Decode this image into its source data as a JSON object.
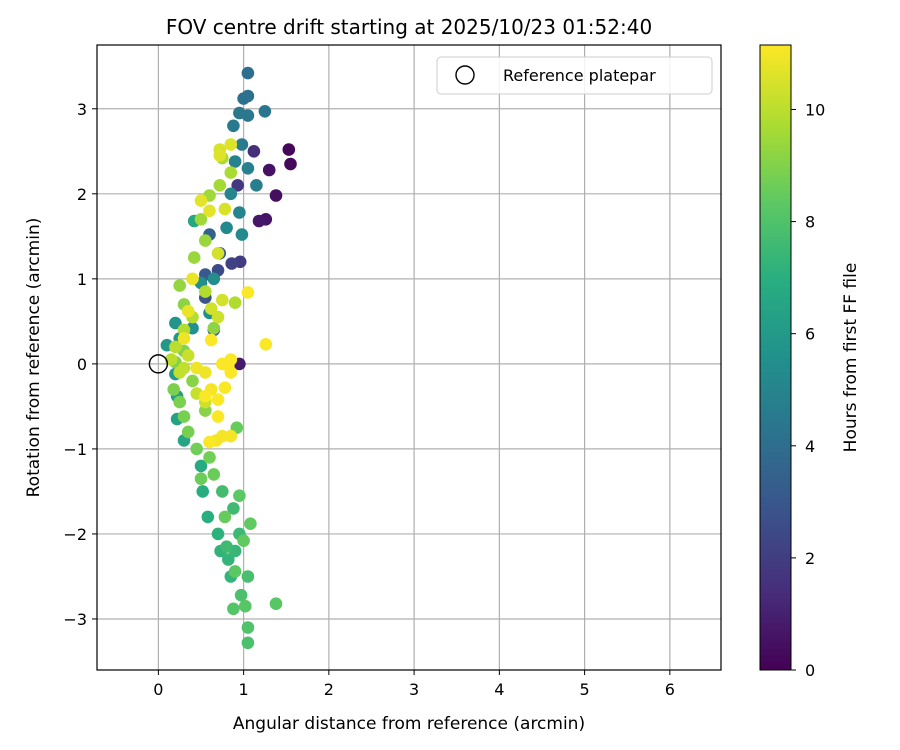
{
  "chart_data": {
    "type": "scatter",
    "title": "FOV centre drift starting at 2025/10/23 01:52:40",
    "xlabel": "Angular distance from reference (arcmin)",
    "ylabel": "Rotation from reference (arcmin)",
    "xlim": [
      -0.72,
      6.6
    ],
    "ylim": [
      -3.6,
      3.75
    ],
    "xticks": [
      0,
      1,
      2,
      3,
      4,
      5,
      6
    ],
    "yticks": [
      -3,
      -2,
      -1,
      0,
      1,
      2,
      3
    ],
    "grid": true,
    "colormap": "viridis",
    "colorbar": {
      "label": "Hours from first FF file",
      "min": 0,
      "max": 11.15,
      "ticks": [
        0,
        2,
        4,
        6,
        8,
        10
      ]
    },
    "legend": {
      "position": "top-right",
      "entries": [
        {
          "label": "Reference platepar",
          "marker": "open-circle",
          "point": [
            0,
            0
          ]
        }
      ]
    },
    "series": [
      {
        "name": "FOV centre drift",
        "points": [
          [
            1.53,
            2.52,
            0.2
          ],
          [
            1.55,
            2.35,
            0.3
          ],
          [
            1.38,
            1.98,
            0.4
          ],
          [
            1.3,
            2.28,
            0.5
          ],
          [
            1.26,
            1.7,
            0.6
          ],
          [
            1.18,
            1.68,
            0.7
          ],
          [
            0.95,
            0.0,
            0.8
          ],
          [
            1.12,
            2.5,
            1.5
          ],
          [
            0.93,
            2.1,
            1.8
          ],
          [
            0.96,
            1.2,
            2.0
          ],
          [
            0.86,
            1.18,
            2.2
          ],
          [
            0.7,
            1.1,
            2.5
          ],
          [
            0.55,
            0.78,
            2.8
          ],
          [
            0.65,
            0.4,
            3.0
          ],
          [
            0.55,
            1.05,
            3.1
          ],
          [
            0.72,
            1.3,
            3.3
          ],
          [
            0.6,
            1.52,
            3.5
          ],
          [
            1.05,
            3.42,
            4.0
          ],
          [
            1.05,
            3.15,
            4.1
          ],
          [
            1.0,
            3.12,
            4.2
          ],
          [
            1.25,
            2.97,
            4.3
          ],
          [
            0.95,
            2.95,
            4.4
          ],
          [
            1.05,
            2.92,
            4.4
          ],
          [
            0.88,
            2.8,
            4.5
          ],
          [
            0.98,
            2.58,
            4.6
          ],
          [
            1.15,
            2.1,
            4.7
          ],
          [
            1.05,
            2.3,
            4.8
          ],
          [
            0.9,
            2.38,
            4.9
          ],
          [
            0.85,
            2.0,
            5.0
          ],
          [
            0.95,
            1.78,
            5.0
          ],
          [
            0.8,
            1.6,
            5.2
          ],
          [
            0.98,
            1.52,
            5.3
          ],
          [
            0.65,
            1.0,
            5.4
          ],
          [
            0.5,
            0.95,
            5.5
          ],
          [
            0.6,
            0.6,
            5.5
          ],
          [
            0.4,
            0.42,
            5.6
          ],
          [
            0.2,
            0.48,
            5.7
          ],
          [
            0.25,
            0.3,
            5.8
          ],
          [
            0.1,
            0.22,
            5.9
          ],
          [
            0.2,
            -0.12,
            6.0
          ],
          [
            0.22,
            -0.38,
            6.2
          ],
          [
            0.22,
            -0.65,
            6.4
          ],
          [
            0.3,
            -0.9,
            6.5
          ],
          [
            0.42,
            1.68,
            6.6
          ],
          [
            0.5,
            -1.2,
            6.8
          ],
          [
            0.52,
            -1.5,
            6.9
          ],
          [
            0.58,
            -1.8,
            7.0
          ],
          [
            0.7,
            -2.0,
            7.1
          ],
          [
            0.73,
            -2.2,
            7.2
          ],
          [
            0.82,
            -2.3,
            7.3
          ],
          [
            0.85,
            -2.5,
            7.3
          ],
          [
            0.9,
            -2.2,
            7.4
          ],
          [
            0.95,
            -2.0,
            7.5
          ],
          [
            0.8,
            -2.15,
            7.6
          ],
          [
            0.88,
            -1.7,
            7.6
          ],
          [
            0.75,
            -1.5,
            7.7
          ],
          [
            1.05,
            -2.5,
            7.8
          ],
          [
            0.97,
            -2.72,
            7.9
          ],
          [
            1.05,
            -3.1,
            8.0
          ],
          [
            1.05,
            -3.28,
            7.9
          ],
          [
            0.88,
            -2.88,
            8.1
          ],
          [
            1.02,
            -2.85,
            8.2
          ],
          [
            1.38,
            -2.82,
            8.2
          ],
          [
            0.9,
            -2.44,
            8.3
          ],
          [
            0.95,
            -1.55,
            8.3
          ],
          [
            1.08,
            -1.88,
            8.4
          ],
          [
            1.0,
            -2.08,
            8.4
          ],
          [
            0.78,
            -1.8,
            8.5
          ],
          [
            0.92,
            -0.75,
            8.5
          ],
          [
            0.65,
            -1.3,
            8.6
          ],
          [
            0.5,
            -1.35,
            8.6
          ],
          [
            0.6,
            -1.1,
            8.7
          ],
          [
            0.45,
            -1.0,
            8.7
          ],
          [
            0.35,
            -0.8,
            8.8
          ],
          [
            0.3,
            -0.62,
            8.8
          ],
          [
            0.25,
            -0.45,
            8.9
          ],
          [
            0.18,
            -0.3,
            8.9
          ],
          [
            0.2,
            0.02,
            9.0
          ],
          [
            0.3,
            0.15,
            9.0
          ],
          [
            0.4,
            -0.2,
            9.1
          ],
          [
            0.55,
            -0.55,
            9.1
          ],
          [
            0.65,
            0.42,
            9.2
          ],
          [
            0.3,
            0.7,
            9.2
          ],
          [
            0.25,
            0.92,
            9.3
          ],
          [
            0.42,
            1.25,
            9.4
          ],
          [
            0.55,
            1.45,
            9.4
          ],
          [
            0.5,
            1.7,
            9.5
          ],
          [
            0.6,
            1.98,
            9.5
          ],
          [
            0.72,
            2.1,
            9.6
          ],
          [
            0.75,
            2.42,
            9.7
          ],
          [
            0.85,
            2.25,
            9.7
          ],
          [
            0.9,
            0.72,
            9.8
          ],
          [
            0.55,
            0.85,
            9.8
          ],
          [
            0.4,
            0.55,
            9.9
          ],
          [
            0.3,
            0.4,
            9.9
          ],
          [
            0.2,
            0.2,
            10.0
          ],
          [
            0.15,
            0.05,
            10.0
          ],
          [
            0.25,
            -0.1,
            10.1
          ],
          [
            0.3,
            -0.05,
            10.1
          ],
          [
            0.35,
            0.1,
            10.2
          ],
          [
            0.45,
            -0.35,
            10.2
          ],
          [
            0.55,
            -0.45,
            10.3
          ],
          [
            0.7,
            0.55,
            10.3
          ],
          [
            0.75,
            0.75,
            10.4
          ],
          [
            0.62,
            0.65,
            10.4
          ],
          [
            0.7,
            1.3,
            10.4
          ],
          [
            0.78,
            1.82,
            10.5
          ],
          [
            0.72,
            2.52,
            10.5
          ],
          [
            0.85,
            2.58,
            10.6
          ],
          [
            0.72,
            2.45,
            10.6
          ],
          [
            0.5,
            1.92,
            10.7
          ],
          [
            0.6,
            1.8,
            10.7
          ],
          [
            0.4,
            1.0,
            10.8
          ],
          [
            0.35,
            0.62,
            10.8
          ],
          [
            0.3,
            0.3,
            10.9
          ],
          [
            0.45,
            -0.05,
            10.9
          ],
          [
            0.55,
            -0.1,
            10.9
          ],
          [
            0.62,
            -0.3,
            11.0
          ],
          [
            0.75,
            -0.85,
            11.0
          ],
          [
            0.85,
            -0.85,
            11.0
          ],
          [
            0.68,
            -0.9,
            11.0
          ],
          [
            0.7,
            -0.62,
            11.1
          ],
          [
            0.78,
            -0.28,
            11.1
          ],
          [
            0.82,
            -0.02,
            11.1
          ],
          [
            0.85,
            -0.1,
            11.1
          ],
          [
            0.85,
            0.05,
            11.1
          ],
          [
            0.75,
            0.0,
            11.1
          ],
          [
            0.62,
            0.28,
            11.1
          ],
          [
            1.05,
            0.84,
            11.1
          ],
          [
            1.26,
            0.23,
            11.1
          ],
          [
            0.7,
            -0.42,
            11.1
          ],
          [
            0.55,
            -0.38,
            11.1
          ],
          [
            0.6,
            -0.92,
            11.1
          ]
        ]
      }
    ]
  }
}
